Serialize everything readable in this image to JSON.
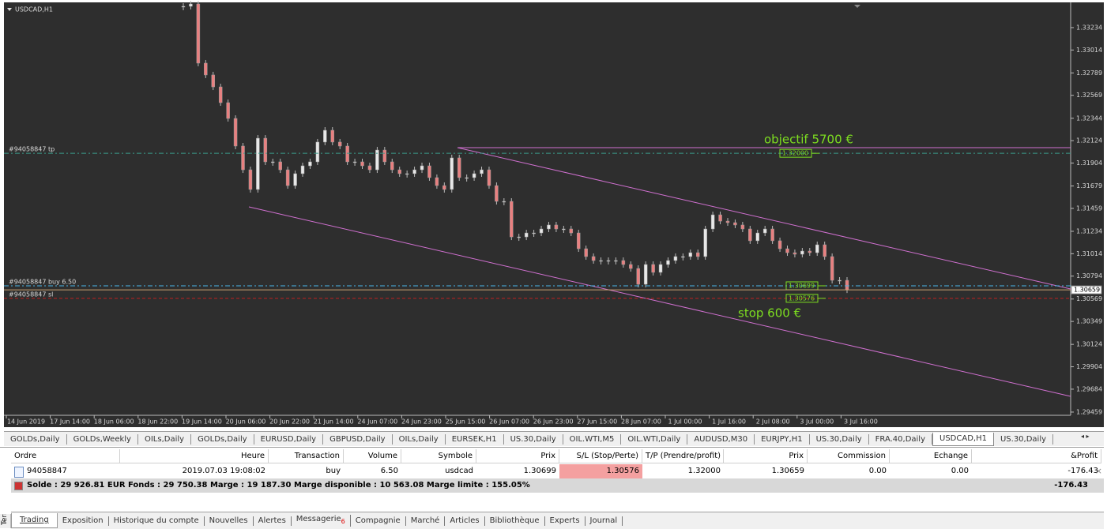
{
  "chart": {
    "title": "USDCAD,H1",
    "ylim": [
      1.29443,
      1.33474
    ],
    "yticks": [
      1.33234,
      1.33014,
      1.32789,
      1.32569,
      1.32344,
      1.32124,
      1.31904,
      1.31679,
      1.31459,
      1.31234,
      1.31014,
      1.30794,
      1.30569,
      1.30349,
      1.30124,
      1.29904,
      1.29684,
      1.29459
    ],
    "time_labels": [
      "14 Jun 2019",
      "17 Jun 14:00",
      "18 Jun 06:00",
      "18 Jun 22:00",
      "19 Jun 14:00",
      "20 Jun 06:00",
      "20 Jun 22:00",
      "21 Jun 14:00",
      "24 Jun 07:00",
      "24 Jun 23:00",
      "25 Jun 15:00",
      "26 Jun 07:00",
      "26 Jun 23:00",
      "27 Jun 15:00",
      "28 Jun 07:00",
      "1 Jul 00:00",
      "1 Jul 16:00",
      "2 Jul 08:00",
      "3 Jul 00:00",
      "3 Jul 16:00"
    ],
    "closes": [
      1.33443,
      1.33466,
      1.32885,
      1.32769,
      1.32652,
      1.32497,
      1.32342,
      1.32071,
      1.31838,
      1.31645,
      1.32148,
      1.31916,
      1.31916,
      1.31838,
      1.31683,
      1.318,
      1.31877,
      1.31916,
      1.3211,
      1.32226,
      1.3211,
      1.32071,
      1.31916,
      1.31916,
      1.31877,
      1.31838,
      1.32032,
      1.31916,
      1.31838,
      1.318,
      1.318,
      1.31838,
      1.31877,
      1.31761,
      1.31683,
      1.31645,
      1.31955,
      1.31761,
      1.31761,
      1.318,
      1.31838,
      1.31683,
      1.31528,
      1.31528,
      1.31179,
      1.31179,
      1.31218,
      1.31218,
      1.31257,
      1.31296,
      1.31257,
      1.31257,
      1.31218,
      1.31063,
      1.30986,
      1.30947,
      1.30947,
      1.30947,
      1.30947,
      1.30908,
      1.30869,
      1.30714,
      1.30908,
      1.30831,
      1.30908,
      1.30947,
      1.30986,
      1.30986,
      1.31024,
      1.30986,
      1.31257,
      1.31396,
      1.31334,
      1.31319,
      1.31296,
      1.31257,
      1.31141,
      1.31218,
      1.31257,
      1.31141,
      1.31063,
      1.31024,
      1.31009,
      1.3104,
      1.31024,
      1.31102,
      1.30986,
      1.30753,
      1.30753,
      1.30659
    ],
    "order_lines": [
      {
        "name": "#94058847 tp",
        "value": 1.32,
        "label": "1.32000"
      },
      {
        "name": "#94058847 buy 6.50",
        "value": 1.30699,
        "label": "1.30699"
      },
      {
        "name": "#94058847 sl",
        "value": 1.30576,
        "label": "1.30576"
      }
    ],
    "current_price": {
      "value": 1.30659,
      "label": "1.30659"
    },
    "annotations": [
      "objectif 5700 €",
      "stop 600 €"
    ]
  },
  "chart_tabs": [
    "GOLDs,Daily",
    "GOLDs,Weekly",
    "OILs,Daily",
    "GOLDs,Daily",
    "EURUSD,Daily",
    "GBPUSD,Daily",
    "OILs,Daily",
    "EURSEK,H1",
    "US.30,Daily",
    "OIL.WTI,M5",
    "OIL.WTI,Daily",
    "AUDUSD,M30",
    "EURJPY,H1",
    "US.30,Daily",
    "FRA.40,Daily",
    "USDCAD,H1",
    "US.30,Daily"
  ],
  "table": {
    "headers": [
      "Ordre",
      "Heure",
      "Transaction",
      "Volume",
      "Symbole",
      "Prix",
      "S/L (Stop/Perte)",
      "T/P (Prendre/profit)",
      "Prix",
      "Commission",
      "Echange",
      "&Profit"
    ],
    "rows": [
      [
        "94058847",
        "2019.07.03 19:08:02",
        "buy",
        "6.50",
        "usdcad",
        "1.30699",
        "1.30576",
        "1.32000",
        "1.30659",
        "0.00",
        "0.00",
        "-176.43"
      ]
    ]
  },
  "summary": {
    "text": "Solde : 29 926.81 EUR  Fonds : 29 750.38  Marge : 19 187.30  Marge disponible : 10 563.08  Marge limite : 155.05%",
    "profit": "-176.43"
  },
  "terminal_label": "Terminal",
  "bottom_tabs": [
    "Trading",
    "Exposition",
    "Historique du compte",
    "Nouvelles",
    "Alertes",
    "Messagerie",
    "Compagnie",
    "Marché",
    "Articles",
    "Bibliothèque",
    "Experts",
    "Journal"
  ],
  "message_count": "6"
}
